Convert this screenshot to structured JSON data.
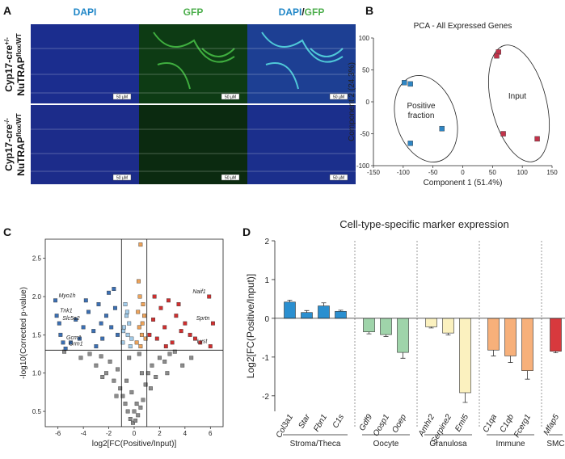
{
  "panel_labels": [
    "A",
    "B",
    "C",
    "D"
  ],
  "microscopy": {
    "columns": [
      "DAPI",
      "GFP"
    ],
    "merge_separator": "/",
    "rows": [
      {
        "line1": "Cyp17-cre",
        "sup1": "+/-",
        "line2": "NuTRAP",
        "sup2": "flox/WT"
      },
      {
        "line1": "Cyp17-cre",
        "sup1": "-/-",
        "line2": "NuTRAP",
        "sup2": "flox/WT"
      }
    ],
    "scale_bar_label": "50 µM"
  },
  "chart_data": [
    {
      "type": "scatter",
      "title": "PCA - All Expressed Genes",
      "xlabel": "Component 1 (51.4%)",
      "ylabel": "Component 2 (24.3%)",
      "xlim": [
        -150,
        150
      ],
      "xticks": [
        -150,
        -100,
        -50,
        0,
        50,
        100,
        150
      ],
      "ylim": [
        -100,
        100
      ],
      "yticks": [
        -100,
        -50,
        0,
        50,
        100
      ],
      "series": [
        {
          "name": "Positive fraction",
          "color": "#2f86c4",
          "x": [
            -98,
            -88,
            -35,
            -88
          ],
          "values": [
            30,
            28,
            -42,
            -65
          ]
        },
        {
          "name": "Input",
          "color": "#c2334a",
          "x": [
            60,
            57,
            68,
            125
          ],
          "values": [
            78,
            72,
            -50,
            -58
          ]
        }
      ]
    },
    {
      "type": "scatter",
      "xlabel": "log2[FC(Positive/Input)]",
      "ylabel": "-log10(Corrected p-value)",
      "xlim": [
        -7,
        7
      ],
      "xticks": [
        -6,
        -4,
        -2,
        0,
        2,
        4,
        6
      ],
      "ylim": [
        0.3,
        2.75
      ],
      "yticks": [
        0.5,
        {
          "value": 1,
          "label": "1.0"
        },
        1.5,
        {
          "value": 2,
          "label": "2.0"
        },
        2.5
      ],
      "vlines": [
        -1,
        1
      ],
      "hline": 1.3,
      "series": [
        {
          "color": "#8c8c8c",
          "x": [
            -4.2,
            -3.5,
            -3,
            -2.6,
            -2.2,
            -1.9,
            -1.6,
            -1.3,
            -1.1,
            -0.9,
            -0.7,
            -0.5,
            -0.3,
            -0.1,
            0.1,
            0.3,
            0.5,
            0.7,
            0.9,
            1.1,
            1.4,
            1.7,
            2,
            2.4,
            2.8,
            3.2,
            3.8,
            -0.6,
            0.6,
            -0.2,
            0.2,
            0,
            -1.4,
            1.3,
            -2.5,
            2.6,
            -0.4,
            0.4,
            -5.5,
            4.5
          ],
          "values": [
            1.2,
            1.25,
            1.1,
            1.22,
            1,
            1.15,
            0.9,
            1.05,
            0.8,
            0.7,
            0.6,
            0.5,
            0.4,
            0.35,
            0.38,
            0.45,
            0.55,
            0.65,
            0.85,
            1,
            1.1,
            0.95,
            1.2,
            1.15,
            1.25,
            1.28,
            1.1,
            0.9,
            1,
            0.75,
            0.6,
            0.5,
            0.7,
            0.8,
            0.95,
            1,
            1.2,
            1.25,
            1.28,
            1.2
          ]
        },
        {
          "color": "#3b6fb3",
          "x": [
            -5.8,
            -5,
            -4.6,
            -4,
            -3.6,
            -3.2,
            -2.8,
            -2.5,
            -2.2,
            -2,
            -1.8,
            -1.5,
            -1.3,
            -3,
            -2.6,
            -1.6,
            -4.3,
            -3.8,
            -6.2,
            -6.1,
            -5.9,
            -5.6,
            -5.4
          ],
          "values": [
            1.5,
            1.4,
            1.7,
            1.6,
            1.8,
            1.55,
            1.9,
            1.45,
            1.75,
            2.05,
            1.6,
            1.85,
            1.5,
            1.35,
            1.65,
            2.1,
            1.45,
            1.95,
            1.95,
            1.75,
            1.65,
            1.4,
            1.32
          ]
        },
        {
          "color": "#a3cbe8",
          "x": [
            -0.9,
            -0.8,
            -0.6,
            -0.5,
            -0.3,
            -0.7,
            -0.4,
            -0.2,
            -0.85,
            -0.55
          ],
          "values": [
            1.4,
            1.6,
            1.75,
            1.5,
            1.35,
            1.9,
            1.65,
            1.45,
            1.55,
            1.8
          ]
        },
        {
          "color": "#eda35a",
          "x": [
            0.2,
            0.4,
            0.6,
            0.8,
            0.3,
            0.5,
            0.7,
            0.9,
            0.45,
            0.65,
            0.5,
            0.35
          ],
          "values": [
            1.4,
            1.6,
            1.5,
            1.75,
            1.8,
            1.35,
            1.9,
            1.45,
            2,
            1.65,
            2.68,
            2.2
          ]
        },
        {
          "color": "#cf2f2f",
          "x": [
            1.2,
            1.5,
            1.8,
            2.1,
            2.4,
            2.7,
            3,
            3.3,
            3.7,
            4,
            4.4,
            4.8,
            5.2,
            1.6,
            2.5,
            3.5,
            5.9,
            6.2,
            6
          ],
          "values": [
            1.5,
            1.7,
            1.45,
            1.85,
            1.6,
            1.95,
            1.4,
            1.75,
            1.55,
            1.65,
            1.5,
            1.45,
            1.4,
            2,
            1.35,
            1.9,
            2,
            1.65,
            1.35
          ]
        }
      ],
      "annotations": [
        {
          "text": "Myo1h",
          "x": -6.2,
          "y": 1.95
        },
        {
          "text": "Tnk1",
          "x": -6.1,
          "y": 1.75
        },
        {
          "text": "Slc5a2",
          "x": -5.9,
          "y": 1.65
        },
        {
          "text": "Gcm1",
          "x": -5.6,
          "y": 1.4
        },
        {
          "text": "Grm1",
          "x": -5.4,
          "y": 1.32
        },
        {
          "text": "Naif1",
          "x": 5.9,
          "y": 2
        },
        {
          "text": "Sprtn",
          "x": 6.2,
          "y": 1.65
        },
        {
          "text": "Lyst",
          "x": 6,
          "y": 1.35
        }
      ]
    },
    {
      "type": "bar",
      "title": "Cell-type-specific marker expression",
      "ylabel": "Log2[FC(Positive/Input)]",
      "ylim": [
        -2.4,
        2
      ],
      "yticks": [
        -2,
        -1,
        0,
        1,
        2
      ],
      "series": [
        {
          "name": "Stroma/Theca",
          "color": "#2a8fd0",
          "categories": [
            "Col3a1",
            "Star",
            "Fbn1",
            "C1s"
          ],
          "values": [
            0.42,
            0.15,
            0.32,
            0.18
          ],
          "errors": [
            0.05,
            0.05,
            0.08,
            0.03
          ]
        },
        {
          "name": "Oocyte",
          "color": "#9fd4aa",
          "categories": [
            "Gdf9",
            "Oosp1",
            "Ooep"
          ],
          "values": [
            -0.35,
            -0.42,
            -0.88
          ],
          "errors": [
            0.05,
            0.05,
            0.15
          ]
        },
        {
          "name": "Granulosa",
          "color": "#fbf1bf",
          "categories": [
            "Amhr2",
            "Serpine2",
            "Eml5"
          ],
          "values": [
            -0.22,
            -0.38,
            -1.92
          ],
          "errors": [
            0.03,
            0.05,
            0.25
          ]
        },
        {
          "name": "Immune",
          "color": "#f7b07a",
          "categories": [
            "C1qa",
            "C1qb",
            "Fcerg1"
          ],
          "values": [
            -0.82,
            -0.97,
            -1.35
          ],
          "errors": [
            0.15,
            0.17,
            0.22
          ]
        },
        {
          "name": "SMC",
          "color": "#d8393d",
          "categories": [
            "Mfap5"
          ],
          "values": [
            -0.85
          ],
          "errors": [
            0.04
          ]
        }
      ]
    }
  ]
}
